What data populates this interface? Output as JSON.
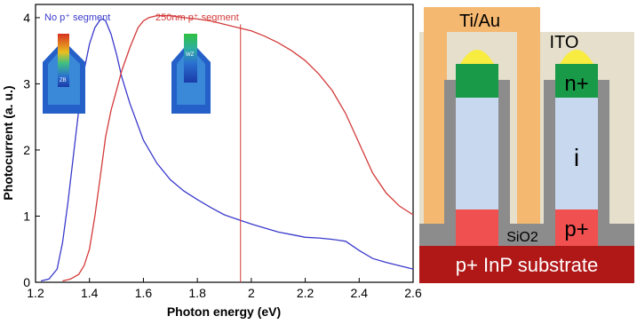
{
  "chart_data": {
    "type": "line",
    "xlabel": "Photon energy (eV)",
    "ylabel": "Photocurrent (a. u.)",
    "xlim": [
      1.2,
      2.6
    ],
    "ylim": [
      0,
      4.2
    ],
    "x_ticks": [
      "1.2",
      "1.4",
      "1.6",
      "1.8",
      "2",
      "2.2",
      "2.4",
      "2.6"
    ],
    "y_ticks": [
      "0",
      "1",
      "2",
      "3",
      "4"
    ],
    "grid": false,
    "legend": "none",
    "series": [
      {
        "name": "No p⁺ segment",
        "color": "#3a3acc",
        "x": [
          1.22,
          1.25,
          1.28,
          1.3,
          1.32,
          1.34,
          1.36,
          1.38,
          1.4,
          1.42,
          1.44,
          1.45,
          1.46,
          1.48,
          1.5,
          1.52,
          1.55,
          1.6,
          1.65,
          1.7,
          1.75,
          1.8,
          1.85,
          1.9,
          1.95,
          2.0,
          2.05,
          2.1,
          2.15,
          2.2,
          2.25,
          2.3,
          2.35,
          2.4,
          2.45,
          2.5,
          2.55,
          2.6
        ],
        "y": [
          0.02,
          0.05,
          0.2,
          0.6,
          1.2,
          1.9,
          2.6,
          3.2,
          3.6,
          3.85,
          3.97,
          3.98,
          3.95,
          3.75,
          3.45,
          3.1,
          2.7,
          2.15,
          1.8,
          1.55,
          1.38,
          1.25,
          1.13,
          1.02,
          0.95,
          0.88,
          0.82,
          0.76,
          0.72,
          0.68,
          0.67,
          0.65,
          0.62,
          0.48,
          0.36,
          0.3,
          0.25,
          0.2
        ]
      },
      {
        "name": "250nm p⁺ segment",
        "color": "#d43a3a",
        "x": [
          1.3,
          1.33,
          1.36,
          1.38,
          1.4,
          1.42,
          1.44,
          1.46,
          1.48,
          1.5,
          1.52,
          1.55,
          1.58,
          1.6,
          1.62,
          1.65,
          1.7,
          1.75,
          1.8,
          1.85,
          1.9,
          1.95,
          2.0,
          2.05,
          2.1,
          2.15,
          2.2,
          2.25,
          2.3,
          2.35,
          2.4,
          2.45,
          2.5,
          2.55,
          2.6
        ],
        "y": [
          0.02,
          0.05,
          0.12,
          0.25,
          0.5,
          1.0,
          1.6,
          2.2,
          2.6,
          2.9,
          3.2,
          3.55,
          3.85,
          3.95,
          4.0,
          4.03,
          4.03,
          4.0,
          3.98,
          3.95,
          3.9,
          3.85,
          3.8,
          3.72,
          3.62,
          3.5,
          3.35,
          3.15,
          2.9,
          2.55,
          2.1,
          1.65,
          1.35,
          1.15,
          1.02
        ]
      }
    ],
    "marker_line_x": 1.96,
    "inset_labels": [
      "ZB",
      "WZ"
    ]
  },
  "diagram": {
    "labels": {
      "contact": "Ti/Au",
      "ito": "ITO",
      "n_region": "n+",
      "intrinsic": "i",
      "p_region": "p+",
      "oxide": "SiO2",
      "substrate": "p+ InP substrate"
    }
  }
}
